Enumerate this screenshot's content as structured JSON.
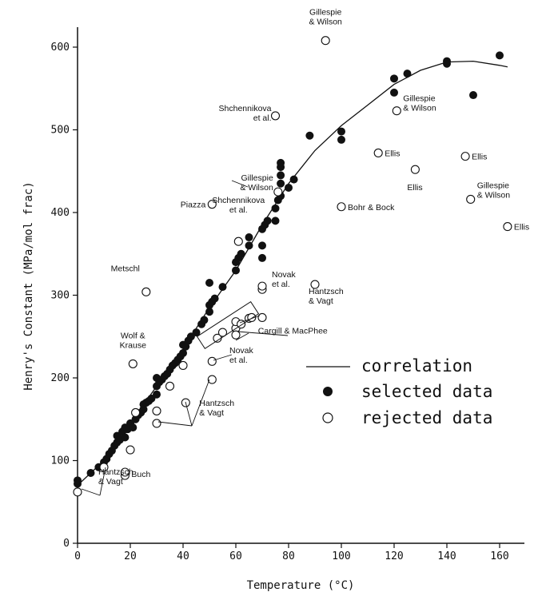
{
  "chart_data": {
    "type": "scatter",
    "xlabel": "Temperature (°C)",
    "ylabel": "Henry's Constant (MPa/mol frac)",
    "xlim": [
      0,
      170
    ],
    "ylim": [
      0,
      630
    ],
    "x_ticks": [
      0,
      20,
      40,
      60,
      80,
      100,
      120,
      140,
      160
    ],
    "y_ticks": [
      0,
      100,
      200,
      300,
      400,
      500,
      600
    ],
    "grid": false,
    "legend_position": "center-right",
    "legend": {
      "correlation": "correlation",
      "selected": "selected data",
      "rejected": "rejected data"
    },
    "series": [
      {
        "name": "correlation",
        "kind": "line",
        "points": [
          [
            0,
            70
          ],
          [
            10,
            100
          ],
          [
            20,
            145
          ],
          [
            30,
            190
          ],
          [
            40,
            235
          ],
          [
            50,
            285
          ],
          [
            60,
            330
          ],
          [
            70,
            385
          ],
          [
            80,
            435
          ],
          [
            90,
            475
          ],
          [
            100,
            505
          ],
          [
            110,
            530
          ],
          [
            120,
            555
          ],
          [
            130,
            572
          ],
          [
            140,
            582
          ],
          [
            150,
            583
          ],
          [
            160,
            578
          ],
          [
            163,
            576
          ]
        ]
      },
      {
        "name": "selected data",
        "kind": "filled-circle",
        "points": [
          [
            0,
            72
          ],
          [
            0,
            76
          ],
          [
            5,
            85
          ],
          [
            8,
            92
          ],
          [
            10,
            98
          ],
          [
            11,
            102
          ],
          [
            12,
            108
          ],
          [
            13,
            112
          ],
          [
            14,
            118
          ],
          [
            15,
            122
          ],
          [
            15,
            130
          ],
          [
            16,
            125
          ],
          [
            17,
            135
          ],
          [
            18,
            128
          ],
          [
            18,
            140
          ],
          [
            19,
            138
          ],
          [
            20,
            145
          ],
          [
            21,
            140
          ],
          [
            22,
            150
          ],
          [
            23,
            155
          ],
          [
            24,
            158
          ],
          [
            25,
            162
          ],
          [
            25,
            168
          ],
          [
            26,
            170
          ],
          [
            27,
            172
          ],
          [
            28,
            175
          ],
          [
            30,
            180
          ],
          [
            30,
            190
          ],
          [
            30,
            200
          ],
          [
            31,
            195
          ],
          [
            32,
            198
          ],
          [
            33,
            202
          ],
          [
            34,
            205
          ],
          [
            35,
            210
          ],
          [
            36,
            215
          ],
          [
            37,
            218
          ],
          [
            38,
            222
          ],
          [
            39,
            226
          ],
          [
            40,
            230
          ],
          [
            40,
            240
          ],
          [
            41,
            238
          ],
          [
            42,
            245
          ],
          [
            43,
            250
          ],
          [
            45,
            255
          ],
          [
            47,
            265
          ],
          [
            48,
            270
          ],
          [
            50,
            280
          ],
          [
            50,
            288
          ],
          [
            51,
            292
          ],
          [
            52,
            296
          ],
          [
            50,
            315
          ],
          [
            55,
            310
          ],
          [
            60,
            330
          ],
          [
            60,
            340
          ],
          [
            61,
            345
          ],
          [
            62,
            350
          ],
          [
            65,
            360
          ],
          [
            65,
            370
          ],
          [
            70,
            345
          ],
          [
            70,
            360
          ],
          [
            70,
            380
          ],
          [
            71,
            385
          ],
          [
            72,
            390
          ],
          [
            75,
            390
          ],
          [
            75,
            405
          ],
          [
            76,
            415
          ],
          [
            77,
            420
          ],
          [
            77,
            435
          ],
          [
            77,
            445
          ],
          [
            77,
            455
          ],
          [
            77,
            460
          ],
          [
            80,
            430
          ],
          [
            82,
            440
          ],
          [
            88,
            493
          ],
          [
            100,
            488
          ],
          [
            100,
            498
          ],
          [
            120,
            545
          ],
          [
            120,
            562
          ],
          [
            125,
            568
          ],
          [
            140,
            580
          ],
          [
            140,
            583
          ],
          [
            150,
            542
          ],
          [
            160,
            590
          ]
        ]
      },
      {
        "name": "rejected data",
        "kind": "open-circle",
        "points": [
          [
            0,
            62
          ],
          [
            10,
            92
          ],
          [
            18,
            82
          ],
          [
            18,
            86
          ],
          [
            20,
            113
          ],
          [
            22,
            158
          ],
          [
            26,
            304
          ],
          [
            21,
            217
          ],
          [
            30,
            145
          ],
          [
            30,
            160
          ],
          [
            35,
            190
          ],
          [
            40,
            215
          ],
          [
            41,
            170
          ],
          [
            51,
            198
          ],
          [
            51,
            220
          ],
          [
            51,
            410
          ],
          [
            53,
            248
          ],
          [
            55,
            255
          ],
          [
            60,
            260
          ],
          [
            60,
            268
          ],
          [
            62,
            265
          ],
          [
            65,
            272
          ],
          [
            66,
            273
          ],
          [
            70,
            273
          ],
          [
            60,
            252
          ],
          [
            61,
            365
          ],
          [
            70,
            307
          ],
          [
            70,
            311
          ],
          [
            75,
            517
          ],
          [
            76,
            425
          ],
          [
            90,
            313
          ],
          [
            94,
            608
          ],
          [
            100,
            407
          ],
          [
            114,
            472
          ],
          [
            121,
            523
          ],
          [
            128,
            452
          ],
          [
            147,
            468
          ],
          [
            149,
            416
          ],
          [
            163,
            383
          ]
        ]
      }
    ],
    "annotations": [
      {
        "lines": [
          "Gillespie",
          "& Wilson"
        ],
        "x": 94,
        "y": 608
      },
      {
        "lines": [
          "Shchennikova",
          "et al."
        ],
        "x": 75,
        "y": 517
      },
      {
        "lines": [
          "Gillespie",
          "& Wilson"
        ],
        "x": 121,
        "y": 523
      },
      {
        "lines": [
          "Ellis"
        ],
        "x": 114,
        "y": 472
      },
      {
        "lines": [
          "Ellis"
        ],
        "x": 147,
        "y": 468
      },
      {
        "lines": [
          "Ellis"
        ],
        "x": 128,
        "y": 452
      },
      {
        "lines": [
          "Gillespie",
          "& Wilson"
        ],
        "x": 76,
        "y": 425
      },
      {
        "lines": [
          "Piazza"
        ],
        "x": 51,
        "y": 410
      },
      {
        "lines": [
          "Bohr & Bock"
        ],
        "x": 100,
        "y": 407
      },
      {
        "lines": [
          "Gillespie",
          "& Wilson"
        ],
        "x": 149,
        "y": 416
      },
      {
        "lines": [
          "Ellis"
        ],
        "x": 163,
        "y": 383
      },
      {
        "lines": [
          "Shchennikova",
          "et al."
        ],
        "x": 61,
        "y": 365
      },
      {
        "lines": [
          "Metschl"
        ],
        "x": 26,
        "y": 304
      },
      {
        "lines": [
          "Novak",
          "et al."
        ],
        "x": 70,
        "y": 311
      },
      {
        "lines": [
          "Hantzsch",
          "& Vagt"
        ],
        "x": 90,
        "y": 313
      },
      {
        "lines": [
          "Cargill & MacPhee"
        ],
        "x": 66,
        "y": 273
      },
      {
        "lines": [
          "Wolf &",
          "Krause"
        ],
        "x": 21,
        "y": 217
      },
      {
        "lines": [
          "Novak",
          "et al."
        ],
        "x": 60,
        "y": 252
      },
      {
        "lines": [
          "Hantzsch",
          "& Vagt"
        ],
        "x": 51,
        "y": 198
      },
      {
        "lines": [
          "Buch"
        ],
        "x": 18,
        "y": 84
      },
      {
        "lines": [
          "Hantzsch",
          "& Vagt"
        ],
        "x": 0,
        "y": 62
      }
    ]
  }
}
